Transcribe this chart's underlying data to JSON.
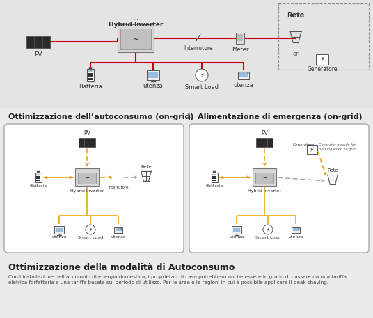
{
  "bg_color": "#ebebeb",
  "title_line1": "Ottimizzazione dell’autoconsumo (on-grid)",
  "plus_sign": "+",
  "title_line2": "Alimentazione di emergenza (on-grid)",
  "bottom_title": "Ottimizzazione della modalità di Autoconsumo",
  "bottom_text": "Con l’installazione dell’accumulo di energia domestica, i proprietari di casa potrebbero anche essere in grado di passare da una tariffa\neletrica forfettaria a una tariffa basata sul periodo di utilizzo. Per le aree e le regioni in cui è possibile applicare il peak shaving.",
  "top_labels": {
    "pv": "PV",
    "hybrid_inverter": "Hybrid Inverter",
    "interrutore": "Interrutore",
    "meter": "Meter",
    "rete": "Rete",
    "or": "or",
    "generatore": "Generatore",
    "batteria": "Batteria",
    "utenza1": "utenza",
    "smart_load": "Smart Load",
    "utenza2": "utenza"
  },
  "left_box_labels": {
    "pv": "PV",
    "batteria": "Batteria",
    "hybrid_inverter": "Hybrid Inverter",
    "interrutore": "Interrutore",
    "rete": "Rete",
    "utenza": "utenza",
    "smart_load": "Smart Load",
    "utenza2": "utenza"
  },
  "right_box_labels": {
    "pv": "PV",
    "generatore": "Generatore",
    "batteria": "Batteria",
    "hybrid_inverter": "Hybrid Inverter",
    "rete": "Rete",
    "utenza": "utenza",
    "smart_load": "Smart Load",
    "utenza2": "utenza",
    "gen_note": "Generator module for\nbacking when no grid."
  },
  "red_line_color": "#cc0000",
  "orange_dash_color": "#e8a000",
  "gray_dash_color": "#aaaaaa",
  "box_bg": "#ffffff",
  "box_border": "#999999"
}
